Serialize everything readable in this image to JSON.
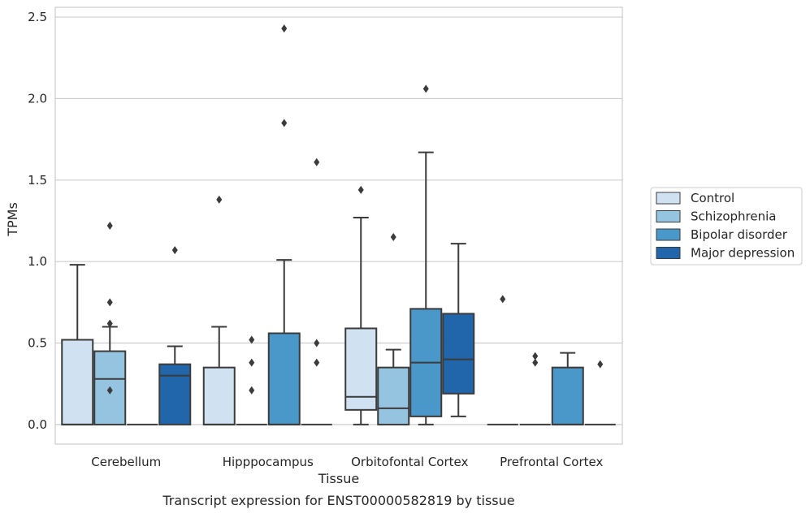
{
  "chart_data": {
    "type": "box",
    "title": "",
    "caption": "Transcript expression for ENST00000582819 by tissue",
    "xlabel": "Tissue",
    "ylabel": "TPMs",
    "ylim": [
      -0.12,
      2.56
    ],
    "yticks": [
      0.0,
      0.5,
      1.0,
      1.5,
      2.0,
      2.5
    ],
    "ytick_labels": [
      "0.0",
      "0.5",
      "1.0",
      "1.5",
      "2.0",
      "2.5"
    ],
    "grid": true,
    "legend_position": "right",
    "categories": [
      "Cerebellum",
      "Hipppocampus",
      "Orbitofontal Cortex",
      "Prefrontal Cortex"
    ],
    "series": [
      {
        "name": "Control",
        "color": "#d0e1f2",
        "boxes": [
          {
            "q1": 0.0,
            "median": 0.0,
            "q3": 0.52,
            "whisker_low": 0.0,
            "whisker_high": 0.98,
            "outliers": []
          },
          {
            "q1": 0.0,
            "median": 0.0,
            "q3": 0.35,
            "whisker_low": 0.0,
            "whisker_high": 0.6,
            "outliers": [
              1.38
            ]
          },
          {
            "q1": 0.09,
            "median": 0.17,
            "q3": 0.59,
            "whisker_low": 0.0,
            "whisker_high": 1.27,
            "outliers": [
              1.44
            ]
          },
          {
            "q1": 0.0,
            "median": 0.0,
            "q3": 0.0,
            "whisker_low": 0.0,
            "whisker_high": 0.0,
            "outliers": [
              0.77
            ]
          }
        ]
      },
      {
        "name": "Schizophrenia",
        "color": "#94c4df",
        "boxes": [
          {
            "q1": 0.0,
            "median": 0.28,
            "q3": 0.45,
            "whisker_low": 0.0,
            "whisker_high": 0.6,
            "outliers": [
              1.22,
              0.75,
              0.62,
              0.21
            ]
          },
          {
            "q1": 0.0,
            "median": 0.0,
            "q3": 0.0,
            "whisker_low": 0.0,
            "whisker_high": 0.0,
            "outliers": [
              0.52,
              0.38,
              0.21
            ]
          },
          {
            "q1": 0.0,
            "median": 0.1,
            "q3": 0.35,
            "whisker_low": 0.0,
            "whisker_high": 0.46,
            "outliers": [
              1.15
            ]
          },
          {
            "q1": 0.0,
            "median": 0.0,
            "q3": 0.0,
            "whisker_low": 0.0,
            "whisker_high": 0.0,
            "outliers": [
              0.42,
              0.38
            ]
          }
        ]
      },
      {
        "name": "Bipolar disorder",
        "color": "#4a98c9",
        "boxes": [
          {
            "q1": 0.0,
            "median": 0.0,
            "q3": 0.0,
            "whisker_low": 0.0,
            "whisker_high": 0.0,
            "outliers": []
          },
          {
            "q1": 0.0,
            "median": 0.0,
            "q3": 0.56,
            "whisker_low": 0.0,
            "whisker_high": 1.01,
            "outliers": [
              2.43,
              1.85
            ]
          },
          {
            "q1": 0.05,
            "median": 0.38,
            "q3": 0.71,
            "whisker_low": 0.0,
            "whisker_high": 1.67,
            "outliers": [
              2.06
            ]
          },
          {
            "q1": 0.0,
            "median": 0.0,
            "q3": 0.35,
            "whisker_low": 0.0,
            "whisker_high": 0.44,
            "outliers": []
          }
        ]
      },
      {
        "name": "Major depression",
        "color": "#2165ab",
        "boxes": [
          {
            "q1": 0.0,
            "median": 0.3,
            "q3": 0.37,
            "whisker_low": 0.0,
            "whisker_high": 0.48,
            "outliers": [
              1.07
            ]
          },
          {
            "q1": 0.0,
            "median": 0.0,
            "q3": 0.0,
            "whisker_low": 0.0,
            "whisker_high": 0.0,
            "outliers": [
              1.61,
              0.5,
              0.38
            ]
          },
          {
            "q1": 0.19,
            "median": 0.4,
            "q3": 0.68,
            "whisker_low": 0.05,
            "whisker_high": 1.11,
            "outliers": []
          },
          {
            "q1": 0.0,
            "median": 0.0,
            "q3": 0.0,
            "whisker_low": 0.0,
            "whisker_high": 0.0,
            "outliers": [
              0.37
            ]
          }
        ]
      }
    ]
  }
}
